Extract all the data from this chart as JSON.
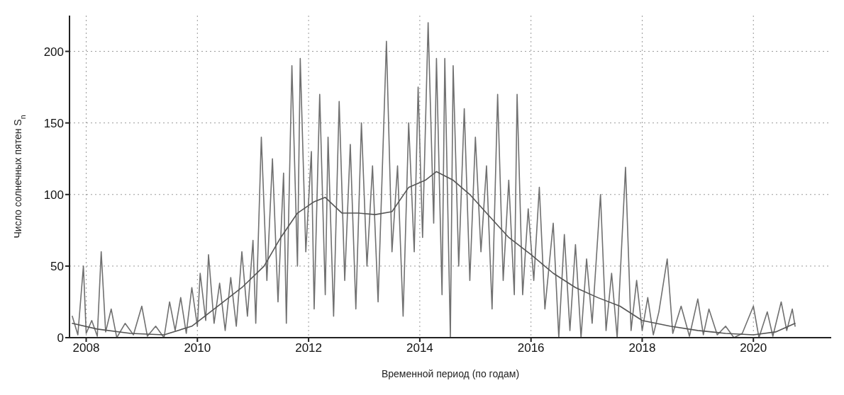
{
  "chart_data": {
    "type": "line",
    "xlabel": "Временной период (по годам)",
    "ylabel": "Число солнечных пятен S$_{n}$",
    "xlim": [
      2007.7,
      2021.4
    ],
    "xticks": [
      2008,
      2010,
      2012,
      2014,
      2016,
      2018,
      2020
    ],
    "ylim": [
      0,
      225
    ],
    "yticks": [
      0,
      50,
      100,
      150,
      200
    ],
    "grid": true,
    "line_style": "solid",
    "marker": "none",
    "series": [
      {
        "color": "#707070",
        "x": [
          2007.75,
          2007.85,
          2007.95,
          2008.0,
          2008.1,
          2008.2,
          2008.27,
          2008.35,
          2008.45,
          2008.55,
          2008.7,
          2008.85,
          2009.0,
          2009.1,
          2009.25,
          2009.4,
          2009.5,
          2009.6,
          2009.7,
          2009.8,
          2009.9,
          2010.0,
          2010.05,
          2010.15,
          2010.2,
          2010.3,
          2010.4,
          2010.5,
          2010.6,
          2010.7,
          2010.8,
          2010.9,
          2011.0,
          2011.05,
          2011.15,
          2011.25,
          2011.35,
          2011.45,
          2011.55,
          2011.6,
          2011.7,
          2011.8,
          2011.85,
          2011.95,
          2012.05,
          2012.1,
          2012.2,
          2012.3,
          2012.35,
          2012.45,
          2012.55,
          2012.65,
          2012.75,
          2012.85,
          2012.95,
          2013.05,
          2013.15,
          2013.25,
          2013.4,
          2013.5,
          2013.6,
          2013.7,
          2013.8,
          2013.9,
          2013.97,
          2014.05,
          2014.15,
          2014.25,
          2014.3,
          2014.4,
          2014.45,
          2014.55,
          2014.6,
          2014.7,
          2014.8,
          2014.9,
          2015.0,
          2015.1,
          2015.2,
          2015.3,
          2015.4,
          2015.5,
          2015.6,
          2015.7,
          2015.75,
          2015.85,
          2015.95,
          2016.05,
          2016.15,
          2016.25,
          2016.4,
          2016.5,
          2016.6,
          2016.7,
          2016.8,
          2016.9,
          2017.0,
          2017.1,
          2017.25,
          2017.35,
          2017.45,
          2017.55,
          2017.7,
          2017.8,
          2017.9,
          2018.0,
          2018.1,
          2018.2,
          2018.3,
          2018.45,
          2018.55,
          2018.7,
          2018.85,
          2019.0,
          2019.1,
          2019.2,
          2019.35,
          2019.5,
          2019.65,
          2019.8,
          2020.0,
          2020.1,
          2020.25,
          2020.35,
          2020.5,
          2020.6,
          2020.7,
          2020.75
        ],
        "values": [
          15,
          2,
          50,
          3,
          12,
          1,
          60,
          4,
          20,
          0,
          10,
          2,
          22,
          1,
          8,
          0,
          25,
          5,
          28,
          3,
          35,
          8,
          45,
          12,
          58,
          10,
          38,
          5,
          42,
          8,
          60,
          15,
          68,
          10,
          140,
          40,
          125,
          25,
          115,
          10,
          190,
          50,
          195,
          60,
          130,
          20,
          170,
          30,
          140,
          15,
          165,
          40,
          135,
          20,
          150,
          50,
          120,
          25,
          207,
          60,
          120,
          15,
          150,
          60,
          175,
          70,
          220,
          80,
          195,
          30,
          195,
          0,
          190,
          50,
          160,
          40,
          140,
          60,
          120,
          20,
          170,
          40,
          110,
          30,
          170,
          30,
          90,
          40,
          105,
          20,
          80,
          0,
          72,
          5,
          65,
          0,
          55,
          10,
          100,
          5,
          45,
          0,
          119,
          5,
          40,
          5,
          28,
          2,
          18,
          55,
          3,
          22,
          1,
          27,
          2,
          20,
          2,
          8,
          0,
          3,
          22,
          0,
          18,
          1,
          25,
          5,
          20,
          8
        ]
      },
      {
        "color": "#555555",
        "x": [
          2007.75,
          2008.2,
          2008.8,
          2009.4,
          2009.9,
          2010.3,
          2010.8,
          2011.2,
          2011.5,
          2011.8,
          2012.1,
          2012.3,
          2012.6,
          2012.9,
          2013.2,
          2013.5,
          2013.8,
          2014.1,
          2014.3,
          2014.6,
          2014.9,
          2015.2,
          2015.6,
          2016.0,
          2016.4,
          2016.8,
          2017.2,
          2017.6,
          2018.0,
          2018.5,
          2019.0,
          2019.5,
          2020.0,
          2020.4,
          2020.75
        ],
        "values": [
          10,
          6,
          3,
          2,
          8,
          20,
          35,
          50,
          70,
          87,
          95,
          98,
          87,
          87,
          86,
          88,
          105,
          110,
          116,
          110,
          100,
          87,
          70,
          58,
          45,
          35,
          28,
          22,
          12,
          8,
          5,
          3,
          2,
          4,
          10
        ]
      }
    ]
  }
}
